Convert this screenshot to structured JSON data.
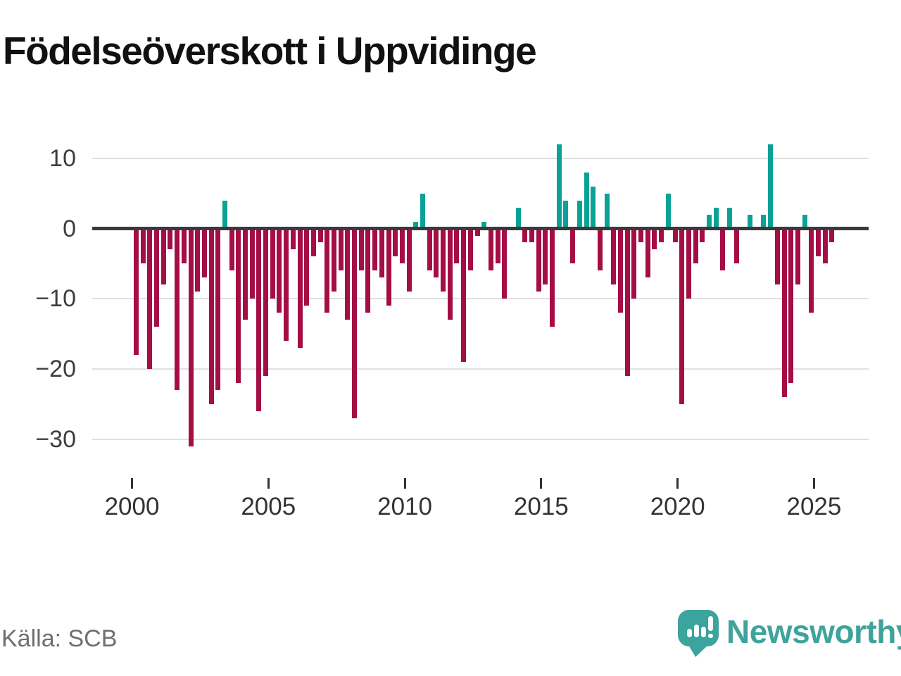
{
  "header": {
    "title": "Födelseöverskott i Uppvidinge"
  },
  "footer": {
    "source": "Källa: SCB",
    "brand": "Newsworthy"
  },
  "colors": {
    "positive_bar": "#0aa296",
    "negative_bar": "#a50d45",
    "zero_axis": "#3a3a3a",
    "gridline": "#e0e0e0",
    "axis_label": "#333333",
    "source_text": "#6f6f6f",
    "brand_teal": "#3ba49c",
    "title_text": "#111111"
  },
  "chart_data": {
    "type": "bar",
    "title": "Födelseöverskott i Uppvidinge",
    "frequency": "quarterly",
    "start_period": "2000Q1",
    "end_period": "2025Q3",
    "x_tick_labels": [
      "2000",
      "2005",
      "2010",
      "2015",
      "2020",
      "2025"
    ],
    "y_ticks": [
      10,
      0,
      -10,
      -20,
      -30
    ],
    "ylim": [
      -33,
      13
    ],
    "grid": true,
    "legend": false,
    "series": [
      {
        "name": "Födelseöverskott",
        "periods": [
          "2000Q1",
          "2000Q2",
          "2000Q3",
          "2000Q4",
          "2001Q1",
          "2001Q2",
          "2001Q3",
          "2001Q4",
          "2002Q1",
          "2002Q2",
          "2002Q3",
          "2002Q4",
          "2003Q1",
          "2003Q2",
          "2003Q3",
          "2003Q4",
          "2004Q1",
          "2004Q2",
          "2004Q3",
          "2004Q4",
          "2005Q1",
          "2005Q2",
          "2005Q3",
          "2005Q4",
          "2006Q1",
          "2006Q2",
          "2006Q3",
          "2006Q4",
          "2007Q1",
          "2007Q2",
          "2007Q3",
          "2007Q4",
          "2008Q1",
          "2008Q2",
          "2008Q3",
          "2008Q4",
          "2009Q1",
          "2009Q2",
          "2009Q3",
          "2009Q4",
          "2010Q1",
          "2010Q2",
          "2010Q3",
          "2010Q4",
          "2011Q1",
          "2011Q2",
          "2011Q3",
          "2011Q4",
          "2012Q1",
          "2012Q2",
          "2012Q3",
          "2012Q4",
          "2013Q1",
          "2013Q2",
          "2013Q3",
          "2013Q4",
          "2014Q1",
          "2014Q2",
          "2014Q3",
          "2014Q4",
          "2015Q1",
          "2015Q2",
          "2015Q3",
          "2015Q4",
          "2016Q1",
          "2016Q2",
          "2016Q3",
          "2016Q4",
          "2017Q1",
          "2017Q2",
          "2017Q3",
          "2017Q4",
          "2018Q1",
          "2018Q2",
          "2018Q3",
          "2018Q4",
          "2019Q1",
          "2019Q2",
          "2019Q3",
          "2019Q4",
          "2020Q1",
          "2020Q2",
          "2020Q3",
          "2020Q4",
          "2021Q1",
          "2021Q2",
          "2021Q3",
          "2021Q4",
          "2022Q1",
          "2022Q2",
          "2022Q3",
          "2022Q4",
          "2023Q1",
          "2023Q2",
          "2023Q3",
          "2023Q4",
          "2024Q1",
          "2024Q2",
          "2024Q3",
          "2024Q4",
          "2025Q1",
          "2025Q2",
          "2025Q3"
        ],
        "values": [
          -18,
          -5,
          -20,
          -14,
          -8,
          -3,
          -23,
          -5,
          -31,
          -9,
          -7,
          -25,
          -23,
          4,
          -6,
          -22,
          -13,
          -10,
          -26,
          -21,
          -10,
          -12,
          -16,
          -3,
          -17,
          -11,
          -4,
          -2,
          -12,
          -9,
          -6,
          -13,
          -27,
          -6,
          -12,
          -6,
          -7,
          -11,
          -4,
          -5,
          -9,
          1,
          5,
          -6,
          -7,
          -9,
          -13,
          -5,
          -19,
          -6,
          -1,
          1,
          -6,
          -5,
          -10,
          0,
          3,
          -2,
          -2,
          -9,
          -8,
          -14,
          12,
          4,
          -5,
          4,
          8,
          6,
          -6,
          5,
          -8,
          -12,
          -21,
          -10,
          -2,
          -7,
          -3,
          -2,
          5,
          -2,
          -25,
          -10,
          -5,
          -2,
          2,
          3,
          -6,
          3,
          -5,
          0,
          2,
          0,
          2,
          12,
          -8,
          -24,
          -22,
          -8,
          2,
          -12,
          -4,
          -5,
          -2
        ]
      }
    ]
  }
}
